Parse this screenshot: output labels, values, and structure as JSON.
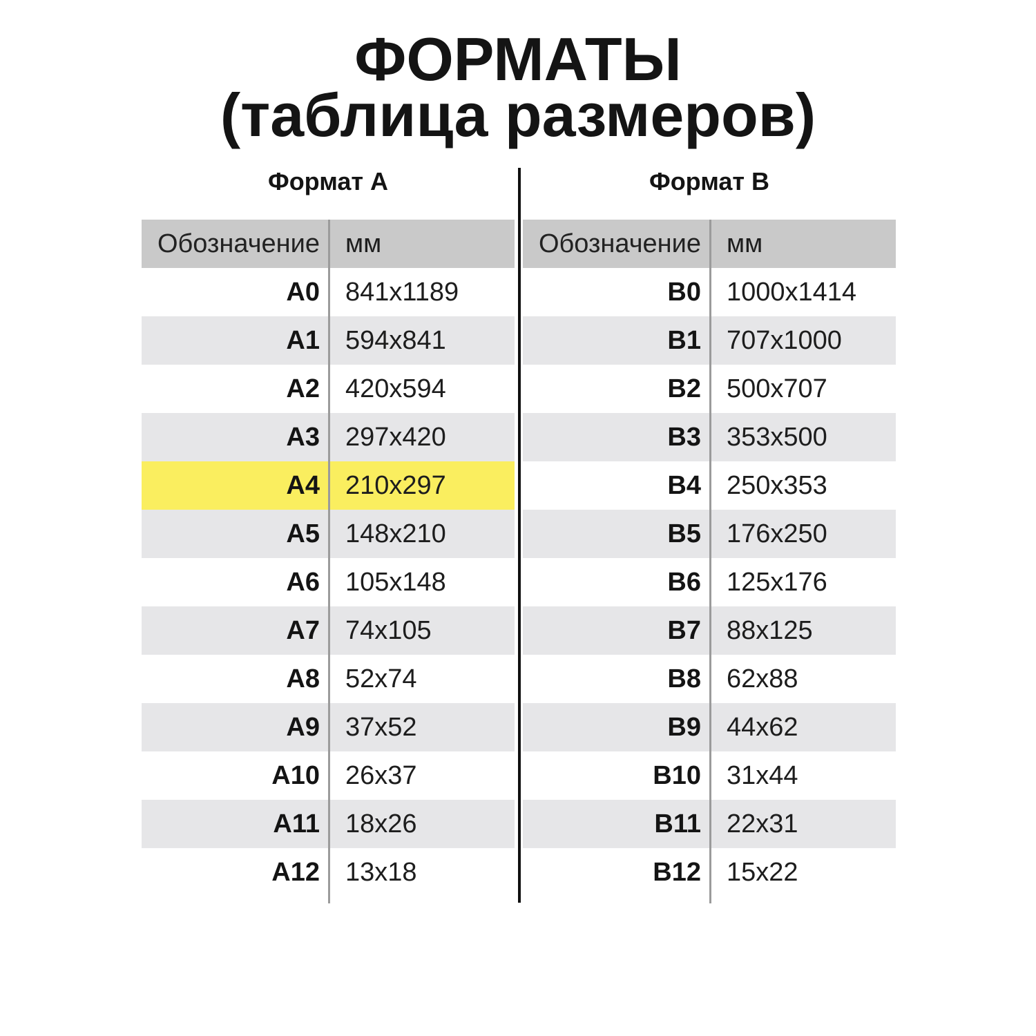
{
  "title": {
    "line1": "ФОРМАТЫ",
    "line2": "(таблица размеров)"
  },
  "chart_data": [
    {
      "type": "table",
      "title": "Формат А",
      "columns": [
        "Обозначение",
        "мм"
      ],
      "highlighted_row": "A4",
      "rows": [
        {
          "label": "A0",
          "mm": "841x1189"
        },
        {
          "label": "A1",
          "mm": "594x841"
        },
        {
          "label": "A2",
          "mm": "420x594"
        },
        {
          "label": "A3",
          "mm": "297x420"
        },
        {
          "label": "A4",
          "mm": "210x297"
        },
        {
          "label": "A5",
          "mm": "148x210"
        },
        {
          "label": "A6",
          "mm": "105x148"
        },
        {
          "label": "A7",
          "mm": "74x105"
        },
        {
          "label": "A8",
          "mm": "52x74"
        },
        {
          "label": "A9",
          "mm": "37x52"
        },
        {
          "label": "A10",
          "mm": "26x37"
        },
        {
          "label": "A11",
          "mm": "18x26"
        },
        {
          "label": "A12",
          "mm": "13x18"
        }
      ]
    },
    {
      "type": "table",
      "title": "Формат В",
      "columns": [
        "Обозначение",
        "мм"
      ],
      "highlighted_row": null,
      "rows": [
        {
          "label": "B0",
          "mm": "1000x1414"
        },
        {
          "label": "B1",
          "mm": "707x1000"
        },
        {
          "label": "B2",
          "mm": "500x707"
        },
        {
          "label": "B3",
          "mm": "353x500"
        },
        {
          "label": "B4",
          "mm": "250x353"
        },
        {
          "label": "B5",
          "mm": "176x250"
        },
        {
          "label": "B6",
          "mm": "125x176"
        },
        {
          "label": "B7",
          "mm": "88x125"
        },
        {
          "label": "B8",
          "mm": "62x88"
        },
        {
          "label": "B9",
          "mm": "44x62"
        },
        {
          "label": "B10",
          "mm": "31x44"
        },
        {
          "label": "B11",
          "mm": "22x31"
        },
        {
          "label": "B12",
          "mm": "15x22"
        }
      ]
    }
  ],
  "colors": {
    "highlight": "#FAEE5F",
    "header_bg": "#C9C9C9",
    "stripe_bg": "#E6E6E8",
    "center_divider": "#101010",
    "inner_divider": "#9B9B9B"
  }
}
